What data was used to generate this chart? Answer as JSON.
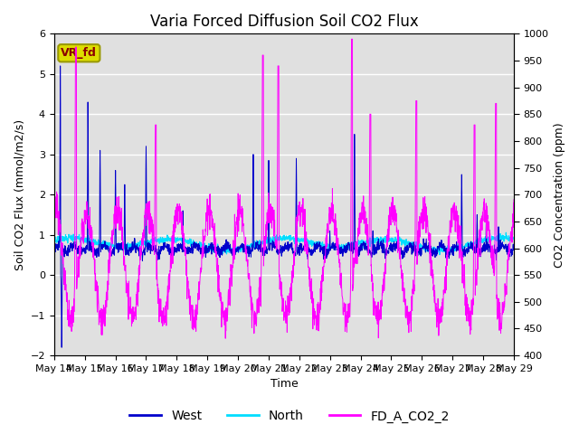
{
  "title": "Varia Forced Diffusion Soil CO2 Flux",
  "xlabel": "Time",
  "ylabel_left": "Soil CO2 Flux (mmol/m2/s)",
  "ylabel_right": "CO2 Concentration (ppm)",
  "ylim_left": [
    -2.0,
    6.0
  ],
  "ylim_right": [
    400,
    1000
  ],
  "yticks_left": [
    -2.0,
    -1.0,
    0.0,
    1.0,
    2.0,
    3.0,
    4.0,
    5.0,
    6.0
  ],
  "yticks_right": [
    400,
    450,
    500,
    550,
    600,
    650,
    700,
    750,
    800,
    850,
    900,
    950,
    1000
  ],
  "xtick_labels": [
    "May 14",
    "May 15",
    "May 16",
    "May 17",
    "May 18",
    "May 19",
    "May 20",
    "May 21",
    "May 22",
    "May 23",
    "May 24",
    "May 25",
    "May 26",
    "May 27",
    "May 28",
    "May 29"
  ],
  "color_west": "#0000CC",
  "color_north": "#00DDFF",
  "color_fd": "#FF00FF",
  "background_color": "#E0E0E0",
  "legend_labels": [
    "West",
    "North",
    "FD_A_CO2_2"
  ],
  "vr_fd_box_color": "#DDDD00",
  "vr_fd_text_color": "#8B0000",
  "title_fontsize": 12,
  "label_fontsize": 9,
  "tick_fontsize": 8,
  "legend_fontsize": 10,
  "days": 15,
  "n_points": 2000,
  "seed": 7
}
